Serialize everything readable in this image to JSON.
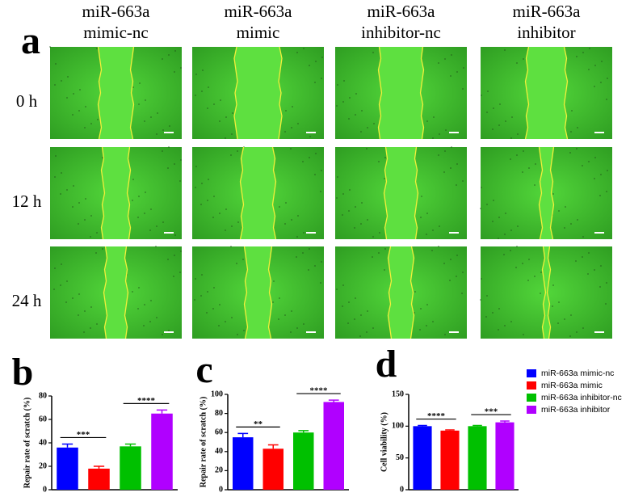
{
  "panel_a": {
    "label": "a",
    "columns": [
      [
        "miR-663a",
        "mimic-nc"
      ],
      [
        "miR-663a",
        "mimic"
      ],
      [
        "miR-663a",
        "inhibitor-nc"
      ],
      [
        "miR-663a",
        "inhibitor"
      ]
    ],
    "rows": [
      "0 h",
      "12 h",
      "24 h"
    ]
  },
  "legend": {
    "items": [
      {
        "name": "miR-663a mimic-nc",
        "color": "#0000ff"
      },
      {
        "name": "miR-663a mimic",
        "color": "#ff0000"
      },
      {
        "name": "miR-663a inhibitor-nc",
        "color": "#00c000"
      },
      {
        "name": "miR-663a inhibitor",
        "color": "#b000ff"
      }
    ]
  },
  "chart_data": [
    {
      "type": "bar",
      "panel_label": "b",
      "ylabel": "Repair rate of scratch (%)",
      "values": [
        36,
        18,
        37,
        65
      ],
      "errors": [
        3,
        2,
        2,
        3
      ],
      "ylim": [
        0,
        80
      ],
      "yticks": [
        0,
        20,
        40,
        60,
        80
      ],
      "significance": [
        "***",
        "****"
      ]
    },
    {
      "type": "bar",
      "panel_label": "c",
      "ylabel": "Repair rate of scratch (%)",
      "values": [
        55,
        43,
        60,
        92
      ],
      "errors": [
        4,
        4,
        2,
        2
      ],
      "ylim": [
        0,
        100
      ],
      "yticks": [
        0,
        20,
        40,
        60,
        80,
        100
      ],
      "significance": [
        "**",
        "****"
      ]
    },
    {
      "type": "bar",
      "panel_label": "d",
      "ylabel": "Cell viability (%)",
      "values": [
        100,
        93,
        100,
        106
      ],
      "errors": [
        1,
        1,
        1,
        2
      ],
      "ylim": [
        0,
        150
      ],
      "yticks": [
        0,
        50,
        100,
        150
      ],
      "significance": [
        "****",
        "***"
      ]
    }
  ]
}
